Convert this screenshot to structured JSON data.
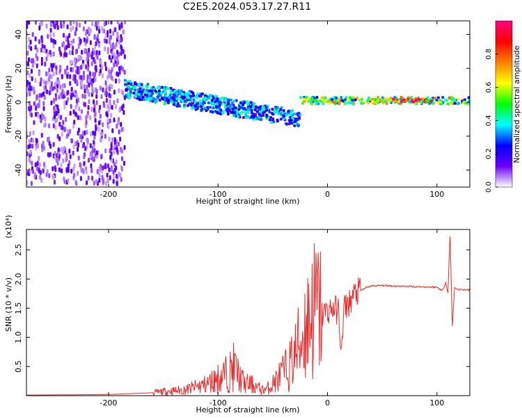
{
  "title": "C2E5.2024.053.17.27.R11",
  "colors": {
    "snr_line": "#ee2a2a",
    "axis": "#000000",
    "background": "#ffffff"
  },
  "chart_data": [
    {
      "type": "heatmap",
      "xlabel": "Height of straight line (km)",
      "ylabel": "Frequency (Hz)",
      "xlim": [
        -275,
        130
      ],
      "ylim": [
        -50,
        48
      ],
      "x_ticks": [
        -200,
        -100,
        0,
        100
      ],
      "x_tick_labels": [
        "-200",
        "-100",
        "0",
        "100"
      ],
      "y_ticks": [
        -40,
        -20,
        0,
        20,
        40
      ],
      "y_tick_labels": [
        "-40",
        "-20",
        "0",
        "20",
        "40"
      ],
      "colorbar": {
        "label": "Normalized spectral amplitude",
        "range": [
          0,
          1
        ],
        "ticks": [
          0.0,
          0.2,
          0.4,
          0.6,
          0.8
        ],
        "tick_labels": [
          "0.0",
          "0.2",
          "0.4",
          "0.6",
          "0.8"
        ],
        "colormap": [
          "#ffffff",
          "#6a00ff",
          "#0000ff",
          "#00ffff",
          "#00ff00",
          "#ffff00",
          "#ff8000",
          "#ff0000",
          "#ff0080"
        ]
      },
      "regions": [
        {
          "x": [
            -275,
            -185
          ],
          "freq_center": 0,
          "freq_spread": 48,
          "amplitude": 0.1,
          "description_key": "noise"
        },
        {
          "x": [
            -185,
            -25
          ],
          "freq_center": [
            8,
            -10
          ],
          "freq_spread": 5,
          "amplitude": 0.35
        },
        {
          "x": [
            -25,
            130
          ],
          "freq_center": 1,
          "freq_spread": 2,
          "amplitude": 0.6
        },
        {
          "x": [
            60,
            95
          ],
          "freq_center": 1,
          "freq_spread": 1,
          "amplitude": 0.85
        }
      ]
    },
    {
      "type": "line",
      "xlabel": "Height of straight line (km)",
      "ylabel": "SNR (10 * v/v)",
      "y_multiplier": "(x10⁴)",
      "xlim": [
        -275,
        130
      ],
      "ylim": [
        0,
        2.85
      ],
      "x_ticks": [
        -200,
        -100,
        0,
        100
      ],
      "x_tick_labels": [
        "-200",
        "-100",
        "0",
        "100"
      ],
      "y_ticks": [
        0.5,
        1.0,
        1.5,
        2.0,
        2.5
      ],
      "y_tick_labels": [
        "0.5",
        "1.0",
        "1.5",
        "2.0",
        "2.5"
      ],
      "series": [
        {
          "x": [
            -275,
            -200,
            -160,
            -150,
            -130,
            -120,
            -110,
            -100,
            -90,
            -85,
            -80,
            -75,
            -70,
            -65,
            -60,
            -55,
            -50,
            -45,
            -40,
            -35,
            -30,
            -25,
            -20,
            -15,
            -10,
            -5,
            0,
            5,
            10,
            13,
            15,
            20,
            25,
            30,
            35,
            40,
            50,
            60,
            80,
            100,
            105,
            108,
            110,
            112,
            114,
            116,
            120,
            130
          ],
          "values": [
            0.01,
            0.02,
            0.05,
            0.07,
            0.1,
            0.15,
            0.2,
            0.3,
            0.4,
            0.5,
            0.3,
            0.2,
            0.2,
            0.15,
            0.1,
            0.12,
            0.2,
            0.3,
            0.4,
            0.5,
            0.7,
            0.9,
            1.2,
            1.4,
            1.5,
            1.4,
            1.45,
            1.5,
            1.45,
            0.7,
            1.5,
            1.6,
            1.75,
            1.8,
            1.85,
            1.88,
            1.89,
            1.88,
            1.87,
            1.86,
            1.8,
            1.95,
            1.75,
            2.8,
            1.15,
            1.85,
            1.82,
            1.81
          ]
        }
      ]
    }
  ]
}
